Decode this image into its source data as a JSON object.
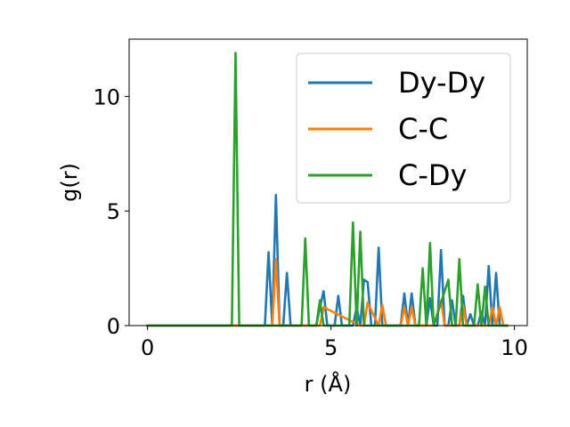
{
  "chart_data": {
    "type": "line",
    "xlabel": "r (Å)",
    "ylabel": "g(r)",
    "xlim": [
      -0.5,
      10.35
    ],
    "ylim": [
      0,
      12.5
    ],
    "xticks": [
      0,
      5,
      10
    ],
    "yticks": [
      0,
      5,
      10
    ],
    "grid": false,
    "legend_position": "top-right",
    "series": [
      {
        "name": "Dy-Dy",
        "color": "#1f77b4",
        "x": [
          0,
          3.2,
          3.3,
          3.4,
          3.5,
          3.6,
          3.7,
          3.8,
          3.9,
          4.0,
          4.1,
          4.6,
          4.7,
          4.8,
          4.9,
          5.1,
          5.2,
          5.3,
          5.6,
          5.7,
          5.8,
          5.9,
          6.0,
          6.1,
          6.2,
          6.3,
          6.4,
          6.5,
          6.9,
          7.0,
          7.1,
          7.2,
          7.3,
          7.4,
          7.6,
          7.7,
          7.8,
          7.9,
          8.0,
          8.1,
          8.2,
          8.3,
          8.4,
          8.5,
          8.6,
          8.7,
          8.8,
          8.9,
          9.0,
          9.1,
          9.2,
          9.3,
          9.4,
          9.5,
          9.6,
          9.7,
          9.8
        ],
        "y": [
          0,
          0,
          3.2,
          0,
          5.7,
          0,
          0,
          2.3,
          0,
          0,
          0,
          0,
          0.8,
          1.5,
          0,
          0,
          1.3,
          0,
          0,
          0.8,
          0,
          2.0,
          1.9,
          0,
          0,
          3.4,
          0,
          0,
          0,
          1.4,
          0,
          1.4,
          0,
          0,
          0,
          1.2,
          0,
          0,
          3.3,
          0,
          0,
          1.1,
          0,
          0,
          1.3,
          0,
          0.5,
          0,
          0,
          0.6,
          0,
          2.6,
          0,
          2.3,
          0,
          0,
          0
        ]
      },
      {
        "name": "C-C",
        "color": "#ff7f0e",
        "x": [
          0,
          3.3,
          3.4,
          3.5,
          3.6,
          4.6,
          4.7,
          4.8,
          5.8,
          5.9,
          6.0,
          6.3,
          6.4,
          6.5,
          6.9,
          7.0,
          7.1,
          7.2,
          7.3,
          7.8,
          7.9,
          8.0,
          8.1,
          8.2,
          8.5,
          8.6,
          8.7,
          9.3,
          9.4,
          9.5,
          9.6,
          9.7,
          9.8
        ],
        "y": [
          0,
          0,
          0,
          2.9,
          0,
          0,
          0,
          0.8,
          0,
          0,
          1.0,
          0,
          0.9,
          0,
          0,
          0.8,
          0,
          0.8,
          0,
          0,
          0.5,
          1.1,
          0,
          0,
          0,
          0.9,
          0,
          0,
          0.8,
          0,
          0.8,
          0,
          0
        ]
      },
      {
        "name": "C-Dy",
        "color": "#2ca02c",
        "x": [
          0,
          2.3,
          2.4,
          2.5,
          4.1,
          4.2,
          4.3,
          4.4,
          4.6,
          4.7,
          4.8,
          5.4,
          5.5,
          5.6,
          5.7,
          5.8,
          5.9,
          6.0,
          7.3,
          7.4,
          7.5,
          7.6,
          7.7,
          7.8,
          8.2,
          8.3,
          8.4,
          8.5,
          8.6,
          8.9,
          9.0,
          9.1,
          9.2,
          9.3,
          9.8
        ],
        "y": [
          0,
          0,
          11.9,
          0,
          0,
          0,
          3.8,
          0,
          0,
          1.1,
          0,
          0,
          0,
          4.5,
          0,
          4.1,
          0,
          0,
          0,
          0,
          2.5,
          0,
          3.6,
          0,
          2.0,
          0,
          0,
          2.9,
          0,
          0,
          1.8,
          0,
          1.7,
          0,
          0
        ]
      }
    ]
  }
}
